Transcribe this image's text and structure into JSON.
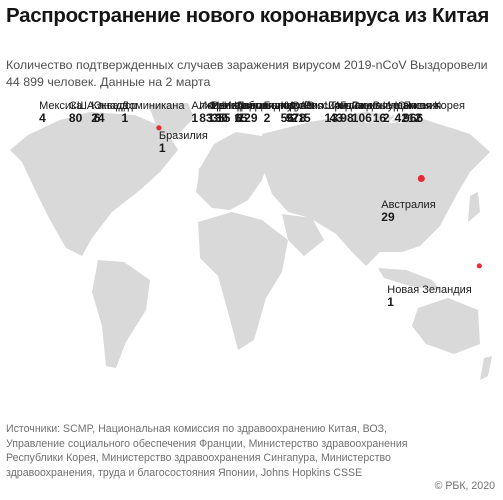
{
  "title": "Распространение нового коронавируса из Китая",
  "subtitle": "Количество подтвержденных случаев заражения вирусом 2019-nCoV Выздоровели 44 899 человек. Данные на 2 марта",
  "colors": {
    "bubble": "#e8151f",
    "land": "#d9d9d9",
    "ocean": "#ffffff",
    "text": "#1a1a1a",
    "muted": "#707070"
  },
  "locations": [
    {
      "id": "canada",
      "name": "Канада",
      "value": "24",
      "lon": -95,
      "lat": 57,
      "cases": 24
    },
    {
      "id": "usa",
      "name": "США",
      "value": "80",
      "lon": -98,
      "lat": 39,
      "cases": 80
    },
    {
      "id": "mexico",
      "name": "Мексика",
      "value": "4",
      "lon": -102,
      "lat": 23,
      "cases": 4
    },
    {
      "id": "dominican",
      "name": "Доминикана",
      "value": "1",
      "lon": -70,
      "lat": 19,
      "cases": 1
    },
    {
      "id": "ecuador",
      "name": "Эквадор",
      "value": "6",
      "lon": -78,
      "lat": -1,
      "cases": 6
    },
    {
      "id": "brazil",
      "name": "Бразилия",
      "value": "1",
      "lon": -47,
      "lat": -15,
      "cases": 1
    },
    {
      "id": "uk",
      "name": "Великобритания",
      "value": "35",
      "lon": -1,
      "lat": 52,
      "cases": 35
    },
    {
      "id": "france",
      "name": "Франция",
      "value": "130",
      "lon": 2,
      "lat": 47,
      "cases": 130
    },
    {
      "id": "spain",
      "name": "Испания",
      "value": "83",
      "lon": -4,
      "lat": 40,
      "cases": 83
    },
    {
      "id": "italy",
      "name": "Италия",
      "value": "1577",
      "lon": 12,
      "lat": 43,
      "cases": 1577
    },
    {
      "id": "germany",
      "name": "Германия",
      "value": "129",
      "lon": 10,
      "lat": 51,
      "cases": 129
    },
    {
      "id": "sweden",
      "name": "Швеция",
      "value": "15",
      "lon": 16,
      "lat": 60,
      "cases": 15
    },
    {
      "id": "finland",
      "name": "Финляндия",
      "value": "6",
      "lon": 26,
      "lat": 62,
      "cases": 6
    },
    {
      "id": "belarus",
      "name": "Белоруссия",
      "value": "2",
      "lon": 28,
      "lat": 53,
      "cases": 2
    },
    {
      "id": "russia",
      "name": "Россия",
      "value": "5",
      "lon": 60,
      "lat": 58,
      "cases": 5
    },
    {
      "id": "algeria",
      "name": "Алжир",
      "value": "1",
      "lon": 3,
      "lat": 28,
      "cases": 1
    },
    {
      "id": "nigeria",
      "name": "Нигерия",
      "value": "1",
      "lon": 8,
      "lat": 9,
      "cases": 1
    },
    {
      "id": "israel",
      "name": "Израиль",
      "value": "5",
      "lon": 35,
      "lat": 31,
      "cases": 5
    },
    {
      "id": "iran",
      "name": "Иран",
      "value": "978",
      "lon": 53,
      "lat": 32,
      "cases": 978
    },
    {
      "id": "kuwait",
      "name": "Кувейт",
      "value": "56",
      "lon": 48,
      "lat": 29,
      "cases": 56
    },
    {
      "id": "uae",
      "name": "ОАЭ",
      "value": "21",
      "lon": 54,
      "lat": 24,
      "cases": 21
    },
    {
      "id": "india",
      "name": "Индия",
      "value": "3",
      "lon": 79,
      "lat": 21,
      "cases": 3
    },
    {
      "id": "srilanka",
      "name": "Шри-Ланка",
      "value": "1",
      "lon": 81,
      "lat": 8,
      "cases": 1
    },
    {
      "id": "china",
      "name": "Китай",
      "value": "80 026",
      "lon": 104,
      "lat": 33,
      "cases": 80026
    },
    {
      "id": "korea",
      "name": "Южная Корея",
      "value": "4212",
      "lon": 128,
      "lat": 36,
      "cases": 4212
    },
    {
      "id": "japan",
      "name": "Япония",
      "value": "966",
      "lon": 138,
      "lat": 36,
      "cases": 966
    },
    {
      "id": "hongkong",
      "name": "Гонконг",
      "value": "98",
      "lon": 114,
      "lat": 22,
      "cases": 98
    },
    {
      "id": "thailand",
      "name": "Таиланд",
      "value": "43",
      "lon": 101,
      "lat": 15,
      "cases": 43
    },
    {
      "id": "vietnam",
      "name": "Вьетнам",
      "value": "16",
      "lon": 106,
      "lat": 16,
      "cases": 16
    },
    {
      "id": "singapore",
      "name": "Сингапур",
      "value": "106",
      "lon": 104,
      "lat": 1,
      "cases": 106
    },
    {
      "id": "indonesia",
      "name": "Индонезия",
      "value": "2",
      "lon": 113,
      "lat": -2,
      "cases": 2
    },
    {
      "id": "australia",
      "name": "Австралия",
      "value": "29",
      "lon": 134,
      "lat": -25,
      "cases": 29
    },
    {
      "id": "newzealand",
      "name": "Новая Зеландия",
      "value": "1",
      "lon": 174,
      "lat": -41,
      "cases": 1
    }
  ],
  "sources": "Источники: SCMP, Национальная комиссия по здравоохранению Китая, ВОЗ, Управление социального обеспечения Франции, Министерство здравоохранения Республики Корея, Министерство здравоохранения Сингапура, Министерство здравоохранения, труда и благосостояния Японии, Johns Hopkins CSSE",
  "credit": "© РБК, 2020"
}
